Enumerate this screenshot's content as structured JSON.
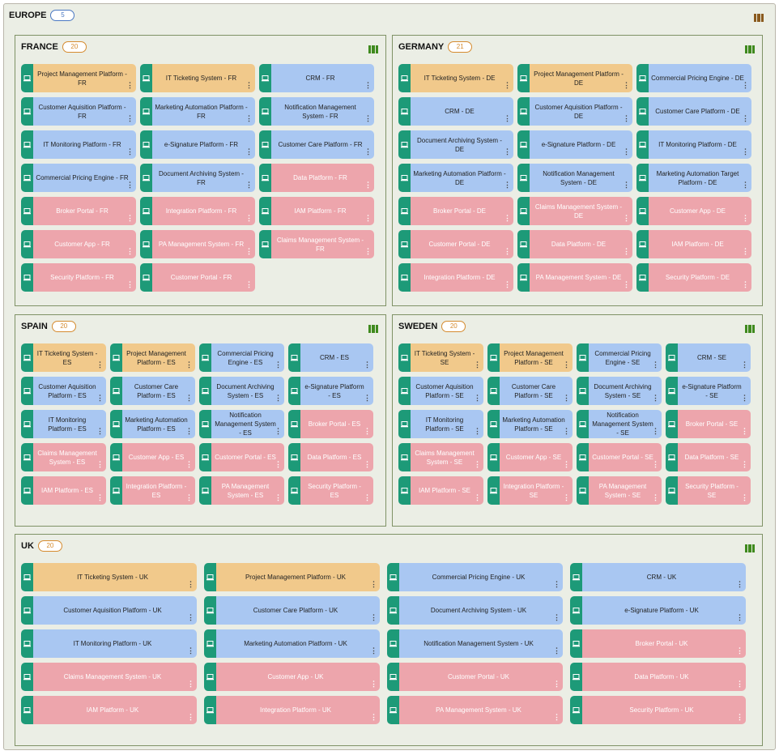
{
  "europe": {
    "title": "EUROPE",
    "count": "5"
  },
  "colors": {
    "orange": "#f1c98b",
    "blue": "#a9c7f2",
    "pink": "#eda5ac",
    "strip": "#1d9a78"
  },
  "regions": [
    {
      "key": "france",
      "title": "FRANCE",
      "count": "20",
      "cards": [
        {
          "label": "Project Management Platform - FR",
          "color": "orange"
        },
        {
          "label": "IT Ticketing System - FR",
          "color": "orange"
        },
        {
          "label": "CRM - FR",
          "color": "blue"
        },
        {
          "label": "Customer Aquisition Platform - FR",
          "color": "blue"
        },
        {
          "label": "Marketing Automation Platform - FR",
          "color": "blue"
        },
        {
          "label": "Notification Management System - FR",
          "color": "blue"
        },
        {
          "label": "IT Monitoring Platform - FR",
          "color": "blue"
        },
        {
          "label": "e-Signature Platform - FR",
          "color": "blue"
        },
        {
          "label": "Customer Care Platform - FR",
          "color": "blue"
        },
        {
          "label": "Commercial Pricing Engine - FR",
          "color": "blue"
        },
        {
          "label": "Document Archiving System - FR",
          "color": "blue"
        },
        {
          "label": "Data Platform - FR",
          "color": "pink"
        },
        {
          "label": "Broker Portal - FR",
          "color": "pink"
        },
        {
          "label": "Integration Platform - FR",
          "color": "pink"
        },
        {
          "label": "IAM Platform - FR",
          "color": "pink"
        },
        {
          "label": "Customer App - FR",
          "color": "pink"
        },
        {
          "label": "PA Management System - FR",
          "color": "pink"
        },
        {
          "label": "Claims Management System - FR",
          "color": "pink"
        },
        {
          "label": "Security Platform - FR",
          "color": "pink"
        },
        {
          "label": "Customer Portal - FR",
          "color": "pink"
        }
      ]
    },
    {
      "key": "germany",
      "title": "GERMANY",
      "count": "21",
      "cards": [
        {
          "label": "IT Ticketing System - DE",
          "color": "orange"
        },
        {
          "label": "Project Management Platform - DE",
          "color": "orange"
        },
        {
          "label": "Commercial Pricing Engine - DE",
          "color": "blue"
        },
        {
          "label": "CRM - DE",
          "color": "blue"
        },
        {
          "label": "Customer Aquisition Platform - DE",
          "color": "blue"
        },
        {
          "label": "Customer Care Platform - DE",
          "color": "blue"
        },
        {
          "label": "Document Archiving System - DE",
          "color": "blue"
        },
        {
          "label": "e-Signature Platform - DE",
          "color": "blue"
        },
        {
          "label": "IT Monitoring Platform - DE",
          "color": "blue"
        },
        {
          "label": "Marketing Automation Platform - DE",
          "color": "blue"
        },
        {
          "label": "Notification Management System - DE",
          "color": "blue"
        },
        {
          "label": "Marketing Automation Target Platform - DE",
          "color": "blue"
        },
        {
          "label": "Broker Portal - DE",
          "color": "pink"
        },
        {
          "label": "Claims Management System - DE",
          "color": "pink"
        },
        {
          "label": "Customer App - DE",
          "color": "pink"
        },
        {
          "label": "Customer Portal - DE",
          "color": "pink"
        },
        {
          "label": "Data Platform - DE",
          "color": "pink"
        },
        {
          "label": "IAM Platform - DE",
          "color": "pink"
        },
        {
          "label": "Integration Platform - DE",
          "color": "pink"
        },
        {
          "label": "PA Management System - DE",
          "color": "pink"
        },
        {
          "label": "Security Platform - DE",
          "color": "pink"
        }
      ]
    },
    {
      "key": "spain",
      "title": "SPAIN",
      "count": "20",
      "cards": [
        {
          "label": "IT Ticketing System - ES",
          "color": "orange"
        },
        {
          "label": "Project Management Platform - ES",
          "color": "orange"
        },
        {
          "label": "Commercial Pricing Engine - ES",
          "color": "blue"
        },
        {
          "label": "CRM - ES",
          "color": "blue"
        },
        {
          "label": "Customer Aquisition Platform - ES",
          "color": "blue"
        },
        {
          "label": "Customer Care Platform - ES",
          "color": "blue"
        },
        {
          "label": "Document Archiving System - ES",
          "color": "blue"
        },
        {
          "label": "e-Signature Platform - ES",
          "color": "blue"
        },
        {
          "label": "IT Monitoring Platform - ES",
          "color": "blue"
        },
        {
          "label": "Marketing Automation Platform - ES",
          "color": "blue"
        },
        {
          "label": "Notification Management System - ES",
          "color": "blue"
        },
        {
          "label": "Broker Portal - ES",
          "color": "pink"
        },
        {
          "label": "Claims Management System - ES",
          "color": "pink"
        },
        {
          "label": "Customer App - ES",
          "color": "pink"
        },
        {
          "label": "Customer Portal - ES",
          "color": "pink"
        },
        {
          "label": "Data Platform - ES",
          "color": "pink"
        },
        {
          "label": "IAM Platform - ES",
          "color": "pink"
        },
        {
          "label": "Integration Platform - ES",
          "color": "pink"
        },
        {
          "label": "PA Management System - ES",
          "color": "pink"
        },
        {
          "label": "Security Platform - ES",
          "color": "pink"
        }
      ]
    },
    {
      "key": "sweden",
      "title": "SWEDEN",
      "count": "20",
      "cards": [
        {
          "label": "IT Ticketing System - SE",
          "color": "orange"
        },
        {
          "label": "Project Management Platform - SE",
          "color": "orange"
        },
        {
          "label": "Commercial Pricing Engine - SE",
          "color": "blue"
        },
        {
          "label": "CRM - SE",
          "color": "blue"
        },
        {
          "label": "Customer Aquisition Platform - SE",
          "color": "blue"
        },
        {
          "label": "Customer Care Platform - SE",
          "color": "blue"
        },
        {
          "label": "Document Archiving System - SE",
          "color": "blue"
        },
        {
          "label": "e-Signature Platform - SE",
          "color": "blue"
        },
        {
          "label": "IT Monitoring Platform - SE",
          "color": "blue"
        },
        {
          "label": "Marketing Automation Platform - SE",
          "color": "blue"
        },
        {
          "label": "Notification Management System - SE",
          "color": "blue"
        },
        {
          "label": "Broker Portal - SE",
          "color": "pink"
        },
        {
          "label": "Claims Management System - SE",
          "color": "pink"
        },
        {
          "label": "Customer App - SE",
          "color": "pink"
        },
        {
          "label": "Customer Portal - SE",
          "color": "pink"
        },
        {
          "label": "Data Platform - SE",
          "color": "pink"
        },
        {
          "label": "IAM Platform - SE",
          "color": "pink"
        },
        {
          "label": "Integration Platform - SE",
          "color": "pink"
        },
        {
          "label": "PA Management System - SE",
          "color": "pink"
        },
        {
          "label": "Security Platform - SE",
          "color": "pink"
        }
      ]
    },
    {
      "key": "uk",
      "title": "UK",
      "count": "20",
      "cards": [
        {
          "label": "IT Ticketing System - UK",
          "color": "orange"
        },
        {
          "label": "Project Management Platform - UK",
          "color": "orange"
        },
        {
          "label": "Commercial Pricing Engine - UK",
          "color": "blue"
        },
        {
          "label": "CRM - UK",
          "color": "blue"
        },
        {
          "label": "Customer Aquisition Platform - UK",
          "color": "blue"
        },
        {
          "label": "Customer Care Platform - UK",
          "color": "blue"
        },
        {
          "label": "Document Archiving System - UK",
          "color": "blue"
        },
        {
          "label": "e-Signature Platform - UK",
          "color": "blue"
        },
        {
          "label": "IT Monitoring Platform - UK",
          "color": "blue"
        },
        {
          "label": "Marketing Automation Platform - UK",
          "color": "blue"
        },
        {
          "label": "Notification Management System - UK",
          "color": "blue"
        },
        {
          "label": "Broker Portal - UK",
          "color": "pink"
        },
        {
          "label": "Claims Management System - UK",
          "color": "pink"
        },
        {
          "label": "Customer App - UK",
          "color": "pink"
        },
        {
          "label": "Customer Portal - UK",
          "color": "pink"
        },
        {
          "label": "Data Platform - UK",
          "color": "pink"
        },
        {
          "label": "IAM Platform - UK",
          "color": "pink"
        },
        {
          "label": "Integration Platform - UK",
          "color": "pink"
        },
        {
          "label": "PA Management System - UK",
          "color": "pink"
        },
        {
          "label": "Security Platform - UK",
          "color": "pink"
        }
      ]
    }
  ]
}
